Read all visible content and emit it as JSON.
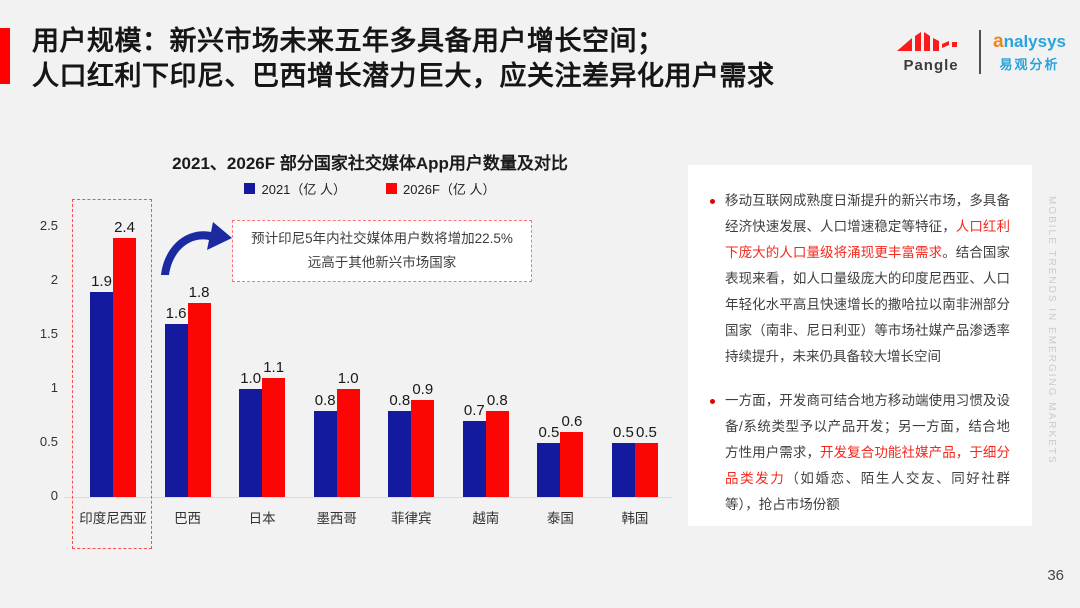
{
  "page": {
    "number": "36",
    "watermark": "MOBILE TRENDS IN EMERGING MARKETS",
    "background": "#f2f2f2"
  },
  "header": {
    "title_line1": "用户规模：新兴市场未来五年多具备用户增长空间；",
    "title_line2": "人口红利下印尼、巴西增长潜力巨大，应关注差异化用户需求",
    "accent_color": "#fe0000"
  },
  "logos": {
    "pangle": {
      "name": "Pangle",
      "brand_color": "#fd1a1a"
    },
    "analysys": {
      "name_a": "a",
      "name_rest": "nalysys",
      "cn": "易观分析",
      "orange": "#f08519",
      "blue": "#2aa3dd"
    }
  },
  "chart_data": {
    "type": "bar",
    "title": "2021、2026F 部分国家社交媒体App用户数量及对比",
    "categories": [
      "印度尼西亚",
      "巴西",
      "日本",
      "墨西哥",
      "菲律宾",
      "越南",
      "泰国",
      "韩国"
    ],
    "series": [
      {
        "name": "2021（亿 人）",
        "color": "#131a9e",
        "values": [
          1.9,
          1.6,
          1.0,
          0.8,
          0.8,
          0.7,
          0.5,
          0.5
        ]
      },
      {
        "name": "2026F（亿 人）",
        "color": "#fb0505",
        "values": [
          2.4,
          1.8,
          1.1,
          1.0,
          0.9,
          0.8,
          0.6,
          0.5
        ]
      }
    ],
    "value_labels": [
      [
        "1.9",
        "2.4"
      ],
      [
        "1.6",
        "1.8"
      ],
      [
        "1.0",
        "1.1"
      ],
      [
        "0.8",
        "1.0"
      ],
      [
        "0.8",
        "0.9"
      ],
      [
        "0.7",
        "0.8"
      ],
      [
        "0.5",
        "0.6"
      ],
      [
        "0.5",
        "0.5"
      ]
    ],
    "y_ticks": [
      "2.5",
      "2",
      "1.5",
      "1",
      "0.5",
      "0"
    ],
    "ylim": [
      0,
      2.5
    ],
    "grid": false,
    "legend_position": "top",
    "highlighted_category": "印度尼西亚",
    "highlight_border_color": "#f85050"
  },
  "annotation": {
    "line1": "预计印尼5年内社交媒体用户数将增加22.5%",
    "line2": "远高于其他新兴市场国家"
  },
  "insights": {
    "red_text_color": "#f5281e",
    "bullets": [
      {
        "segments": [
          {
            "text": "移动互联网成熟度日渐提升的新兴市场，多具备经济快速发展、人口增速稳定等特征，",
            "red": false
          },
          {
            "text": "人口红利下庞大的人口量级将涌现更丰富需求",
            "red": true
          },
          {
            "text": "。结合国家表现来看，如人口量级庞大的印度尼西亚、人口年轻化水平高且快速增长的撒哈拉以南非洲部分国家（南非、尼日利亚）等市场社媒产品渗透率持续提升，未来仍具备较大增长空间",
            "red": false
          }
        ]
      },
      {
        "segments": [
          {
            "text": "一方面，开发商可结合地方移动端使用习惯及设备/系统类型予以产品开发；另一方面，结合地方性用户需求，",
            "red": false
          },
          {
            "text": "开发复合功能社媒产品，于细分品类发力",
            "red": true
          },
          {
            "text": "（如婚恋、陌生人交友、同好社群等），抢占市场份额",
            "red": false
          }
        ]
      }
    ]
  }
}
